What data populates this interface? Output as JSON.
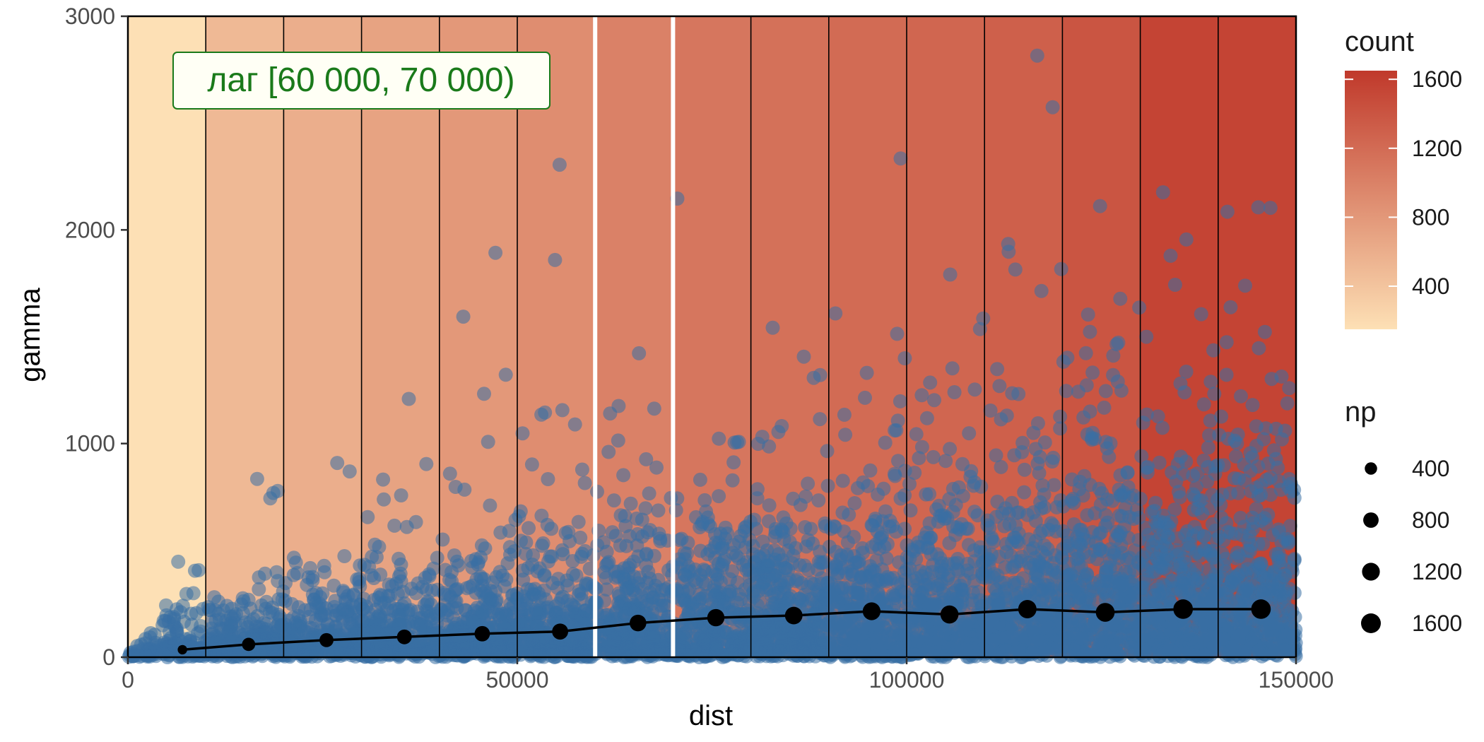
{
  "chart_data": {
    "type": "scatter",
    "title": "",
    "xlabel": "dist",
    "ylabel": "gamma",
    "xlim": [
      0,
      150000
    ],
    "ylim": [
      0,
      3000
    ],
    "x_ticks": [
      0,
      50000,
      100000,
      150000
    ],
    "x_tick_labels": [
      "0",
      "50000",
      "100000",
      "150000"
    ],
    "y_ticks": [
      0,
      1000,
      2000,
      3000
    ],
    "y_tick_labels": [
      "0",
      "1000",
      "2000",
      "3000"
    ],
    "grid": false,
    "annotation": {
      "text": "лаг [60 000, 70 000)",
      "color": "#1a7a1a",
      "highlight_lag": [
        60000,
        70000
      ],
      "highlight_color": "#ffffff"
    },
    "lag_bins": {
      "edges": [
        0,
        10000,
        20000,
        30000,
        40000,
        50000,
        60000,
        70000,
        80000,
        90000,
        100000,
        110000,
        120000,
        130000,
        140000,
        150000
      ],
      "count": [
        150,
        500,
        600,
        700,
        800,
        900,
        1000,
        1100,
        1150,
        1200,
        1250,
        1300,
        1400,
        1550,
        1550
      ],
      "color_low": "#fde0b5",
      "color_high": "#c0392b"
    },
    "semivariogram": {
      "name": "np",
      "color": "#000000",
      "x": [
        7000,
        15500,
        25500,
        35500,
        45500,
        55500,
        65500,
        75500,
        85500,
        95500,
        105500,
        115500,
        125500,
        135500,
        145500
      ],
      "gamma": [
        35,
        60,
        80,
        95,
        110,
        120,
        160,
        185,
        195,
        215,
        200,
        225,
        210,
        225,
        225
      ],
      "np": [
        150,
        500,
        600,
        700,
        800,
        900,
        1000,
        1100,
        1150,
        1200,
        1250,
        1300,
        1400,
        1550,
        1550
      ]
    },
    "cloud": {
      "color": "#386fa4",
      "description_of_density": "dense blue cloud near zero, spreading upward with distance"
    },
    "legends": {
      "fill": {
        "title": "count",
        "breaks": [
          400,
          800,
          1200,
          1600
        ],
        "labels": [
          "400",
          "800",
          "1200",
          "1600"
        ],
        "range": [
          150,
          1650
        ]
      },
      "size": {
        "title": "np",
        "breaks": [
          400,
          800,
          1200,
          1600
        ],
        "labels": [
          "400",
          "800",
          "1200",
          "1600"
        ]
      },
      "placement": "right"
    }
  }
}
